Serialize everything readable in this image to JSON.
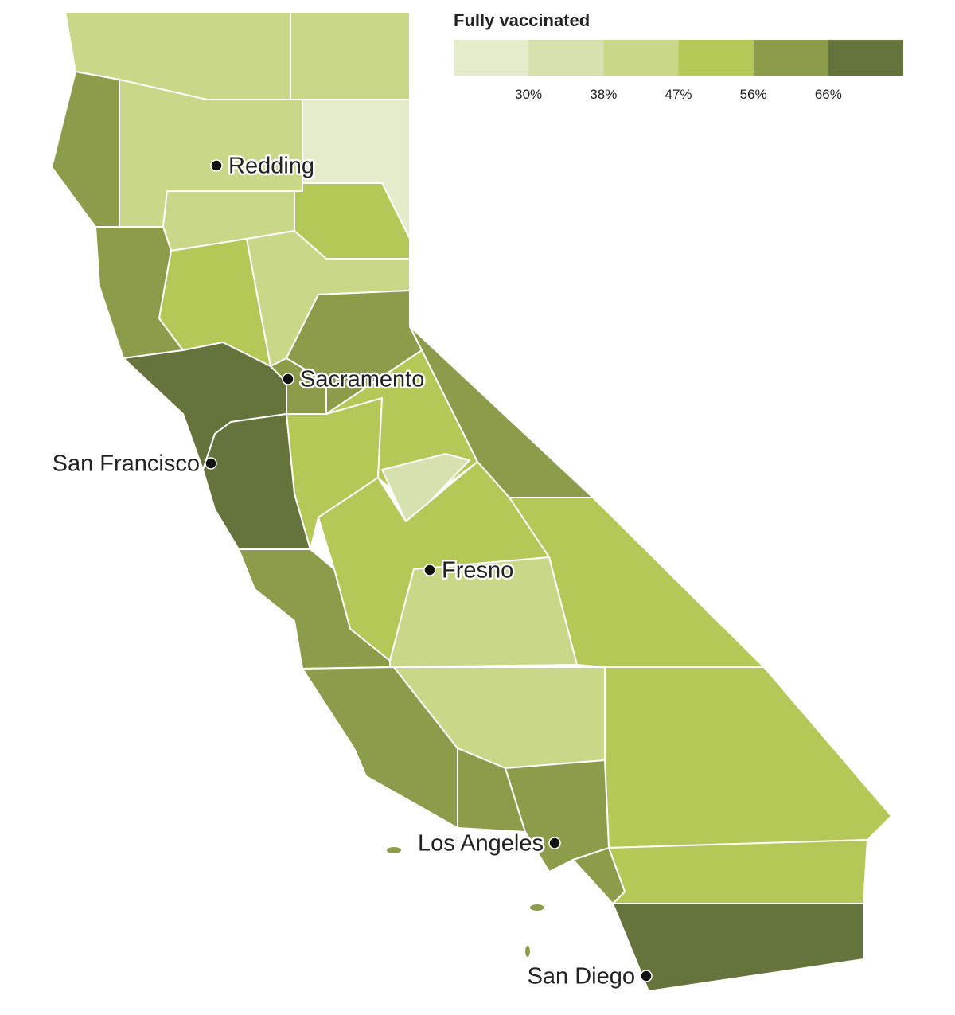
{
  "legend": {
    "title": "Fully vaccinated",
    "colors": [
      "#e3edcc",
      "#d5e2b0",
      "#c8d888",
      "#b3c857",
      "#8b9d4a",
      "#65733c"
    ],
    "ticks": [
      {
        "value": 30,
        "label": "30%"
      },
      {
        "value": 38,
        "label": "38%"
      },
      {
        "value": 47,
        "label": "47%"
      },
      {
        "value": 56,
        "label": "56%"
      },
      {
        "value": 66,
        "label": "66%"
      }
    ]
  },
  "cities": [
    {
      "name": "Redding"
    },
    {
      "name": "Sacramento"
    },
    {
      "name": "San Francisco"
    },
    {
      "name": "Fresno"
    },
    {
      "name": "Los Angeles"
    },
    {
      "name": "San Diego"
    }
  ]
}
